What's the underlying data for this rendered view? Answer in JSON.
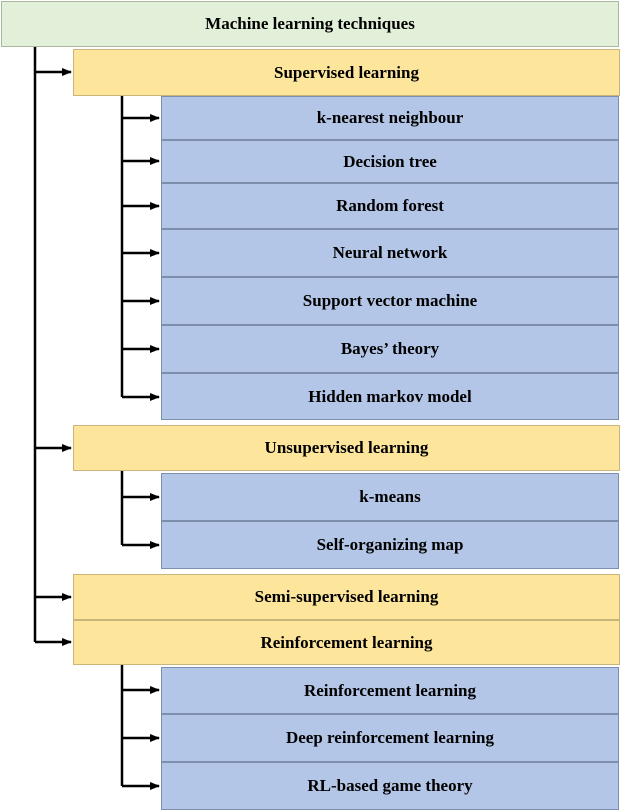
{
  "root": {
    "label": "Machine learning techniques"
  },
  "categories": [
    {
      "label": "Supervised learning",
      "items": [
        "k-nearest neighbour",
        "Decision tree",
        "Random forest",
        "Neural network",
        "Support vector machine",
        "Bayes’ theory",
        "Hidden markov model"
      ]
    },
    {
      "label": "Unsupervised learning",
      "items": [
        "k-means",
        "Self-organizing map"
      ]
    },
    {
      "label": "Semi-supervised learning",
      "items": []
    },
    {
      "label": "Reinforcement learning",
      "items": [
        "Reinforcement learning",
        "Deep reinforcement learning",
        "RL-based game theory"
      ]
    }
  ]
}
